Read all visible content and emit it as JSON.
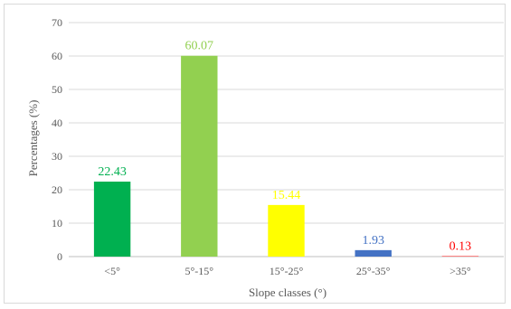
{
  "chart_data": {
    "type": "bar",
    "title": "",
    "xlabel": "Slope classes (°)",
    "ylabel": "Percentages (%)",
    "ylim": [
      0,
      70
    ],
    "yticks": [
      0,
      10,
      20,
      30,
      40,
      50,
      60,
      70
    ],
    "grid": true,
    "legend": "none",
    "categories": [
      "<5°",
      "5°-15°",
      "15°-25°",
      "25°-35°",
      ">35°"
    ],
    "values": [
      22.43,
      60.07,
      15.44,
      1.93,
      0.13
    ],
    "value_labels": [
      "22.43",
      "60.07",
      "15.44",
      "1.93",
      "0.13"
    ],
    "colors": [
      "#00b050",
      "#92d050",
      "#ffff00",
      "#4472c4",
      "#ff0000"
    ]
  }
}
